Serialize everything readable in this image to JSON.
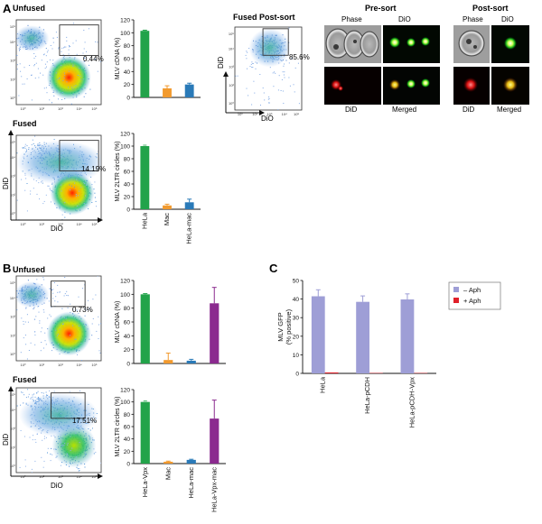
{
  "panels": {
    "A": {
      "letter": "A",
      "unfused": {
        "title": "Unfused",
        "gate_pct": "0.44%"
      },
      "fused": {
        "title": "Fused",
        "gate_pct": "14.19%"
      },
      "flow_xlabel": "DiO",
      "flow_ylabel": "DiD",
      "postsort_flow": {
        "title": "Fused Post-sort",
        "gate_pct": "85.6%",
        "xlabel": "DiO",
        "ylabel": "DiD"
      },
      "presort": {
        "title": "Pre-sort",
        "top_labels": [
          "Phase",
          "DiO"
        ],
        "bottom_labels": [
          "DiD",
          "Merged"
        ]
      },
      "postsort": {
        "title": "Post-sort",
        "top_labels": [
          "Phase",
          "DiO"
        ],
        "bottom_labels": [
          "DiD",
          "Merged"
        ]
      }
    },
    "B": {
      "letter": "B",
      "unfused": {
        "title": "Unfused",
        "gate_pct": "0.73%"
      },
      "fused": {
        "title": "Fused",
        "gate_pct": "17.51%"
      },
      "flow_xlabel": "DiO",
      "flow_ylabel": "DiD"
    },
    "C": {
      "letter": "C"
    }
  },
  "flow_tick_labels": [
    "10⁰",
    "10²",
    "10³",
    "10⁴",
    "10⁵"
  ],
  "colors": {
    "green": "#22a34a",
    "orange": "#f29a2e",
    "blue": "#2a7ab8",
    "purple": "#8b2a8f",
    "lavender": "#9e9ed6",
    "red": "#e0202a"
  },
  "chart_data": [
    {
      "id": "A-cdna",
      "type": "bar",
      "ylabel": "MLV cDNA (%)",
      "ylim": [
        0,
        120
      ],
      "yticks": [
        0,
        20,
        40,
        60,
        80,
        100,
        120
      ],
      "categories": [
        "HeLa",
        "Mac",
        "HeLa-mac"
      ],
      "values": [
        103,
        14,
        20
      ],
      "errors": [
        1,
        4,
        2
      ],
      "colors": [
        "#22a34a",
        "#f29a2e",
        "#2a7ab8"
      ],
      "show_categories": false
    },
    {
      "id": "A-circles",
      "type": "bar",
      "ylabel": "MLV 2LTR circles (%)",
      "ylim": [
        0,
        120
      ],
      "yticks": [
        0,
        20,
        40,
        60,
        80,
        100,
        120
      ],
      "categories": [
        "HeLa",
        "Mac",
        "HeLa-mac"
      ],
      "values": [
        100,
        6,
        11
      ],
      "errors": [
        0,
        2,
        5
      ],
      "colors": [
        "#22a34a",
        "#f29a2e",
        "#2a7ab8"
      ],
      "show_categories": true
    },
    {
      "id": "B-cdna",
      "type": "bar",
      "ylabel": "MLV cDNA (%)",
      "ylim": [
        0,
        120
      ],
      "yticks": [
        0,
        20,
        40,
        60,
        80,
        100,
        120
      ],
      "categories": [
        "HeLa-Vpx",
        "Mac",
        "HeLa-mac",
        "HeLa-Vpx-mac"
      ],
      "values": [
        100,
        5,
        4,
        87
      ],
      "errors": [
        1,
        10,
        2,
        23
      ],
      "colors": [
        "#22a34a",
        "#f29a2e",
        "#2a7ab8",
        "#8b2a8f"
      ],
      "show_categories": false
    },
    {
      "id": "B-circles",
      "type": "bar",
      "ylabel": "MLV 2LTR circles (%)",
      "ylim": [
        0,
        120
      ],
      "yticks": [
        0,
        20,
        40,
        60,
        80,
        100,
        120
      ],
      "categories": [
        "HeLa-Vpx",
        "Mac",
        "HeLa-mac",
        "HeLa-Vpx-mac"
      ],
      "values": [
        100,
        3,
        6,
        73
      ],
      "errors": [
        0,
        1,
        1,
        30
      ],
      "colors": [
        "#22a34a",
        "#f29a2e",
        "#2a7ab8",
        "#8b2a8f"
      ],
      "show_categories": true
    },
    {
      "id": "C-gfp",
      "type": "bar",
      "ylabel": "MLV GFP (% positive)",
      "ylim": [
        0,
        50
      ],
      "yticks": [
        0,
        10,
        20,
        30,
        40,
        50
      ],
      "categories": [
        "HeLa",
        "HeLa-pCDH",
        "HeLa-pCDH-Vpx"
      ],
      "series": [
        {
          "name": "– Aph",
          "color": "#9e9ed6",
          "values": [
            41.5,
            38.5,
            39.8
          ],
          "errors": [
            3.5,
            3.2,
            3.0
          ]
        },
        {
          "name": "+ Aph",
          "color": "#e0202a",
          "values": [
            0.5,
            0.2,
            0.2
          ],
          "errors": [
            0,
            0,
            0
          ]
        }
      ],
      "show_categories": true,
      "legend_position": "top-right"
    }
  ]
}
